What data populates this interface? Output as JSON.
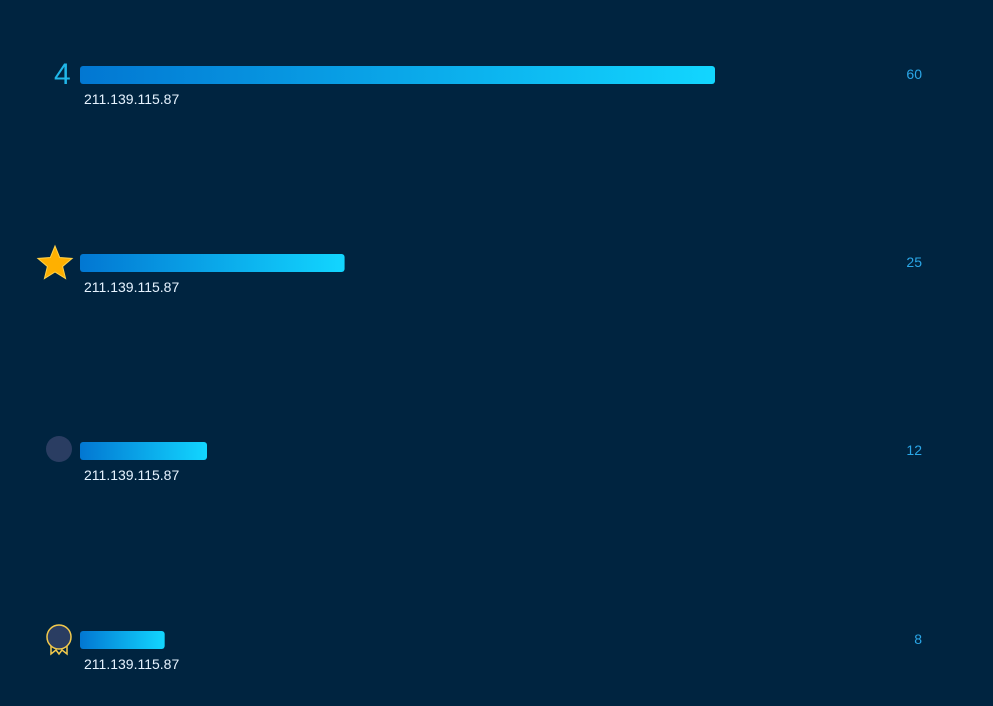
{
  "chart_data": {
    "type": "bar",
    "orientation": "horizontal",
    "categories": [
      "211.139.115.87",
      "211.139.115.87",
      "211.139.115.87",
      "211.139.115.87"
    ],
    "values": [
      60,
      25,
      12,
      8
    ],
    "value_labels": [
      "60",
      "25",
      "12",
      "8"
    ],
    "xlim": [
      0,
      60
    ],
    "grid": false,
    "rank_markers": [
      {
        "kind": "text",
        "text": "4",
        "icon": "number-4"
      },
      {
        "kind": "icon",
        "icon": "star-icon"
      },
      {
        "kind": "icon",
        "icon": "circle-badge-icon"
      },
      {
        "kind": "icon",
        "icon": "medal-icon"
      }
    ],
    "colors": {
      "background": "#002440",
      "bar_start": "#0277d2",
      "bar_end": "#12d6ff",
      "category_label": "#e6f3ff",
      "value_label": "#2aa7e8",
      "rank_text": "#20b6e8",
      "star": "#ffb000",
      "badge_fill": "#2a3d62",
      "medal_stroke": "#f2c94c"
    }
  }
}
